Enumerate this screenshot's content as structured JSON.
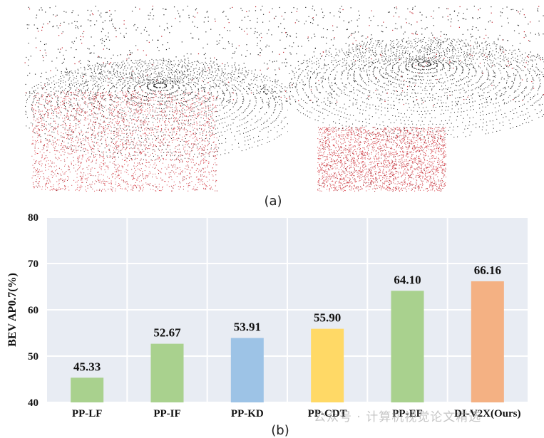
{
  "captions": {
    "a": "(a)",
    "b": "(b)"
  },
  "watermark": "公众号 · 计算机视觉论文精选",
  "chart_data": {
    "type": "bar",
    "title": "",
    "xlabel": "",
    "ylabel": "BEV AP0.7(%)",
    "ylim": [
      40,
      80
    ],
    "yticks": [
      40,
      50,
      60,
      70,
      80
    ],
    "grid": true,
    "categories": [
      "PP-LF",
      "PP-IF",
      "PP-KD",
      "PP-CDT",
      "PP-EF",
      "DI-V2X(Ours)"
    ],
    "values": [
      45.33,
      52.67,
      53.91,
      55.9,
      64.1,
      66.16
    ],
    "value_labels": [
      "45.33",
      "52.67",
      "53.91",
      "55.90",
      "64.10",
      "66.16"
    ],
    "colors": [
      "#a9d18e",
      "#a9d18e",
      "#9dc3e6",
      "#ffd966",
      "#a9d18e",
      "#f4b183"
    ],
    "plot_background": "#e8ecf3"
  }
}
